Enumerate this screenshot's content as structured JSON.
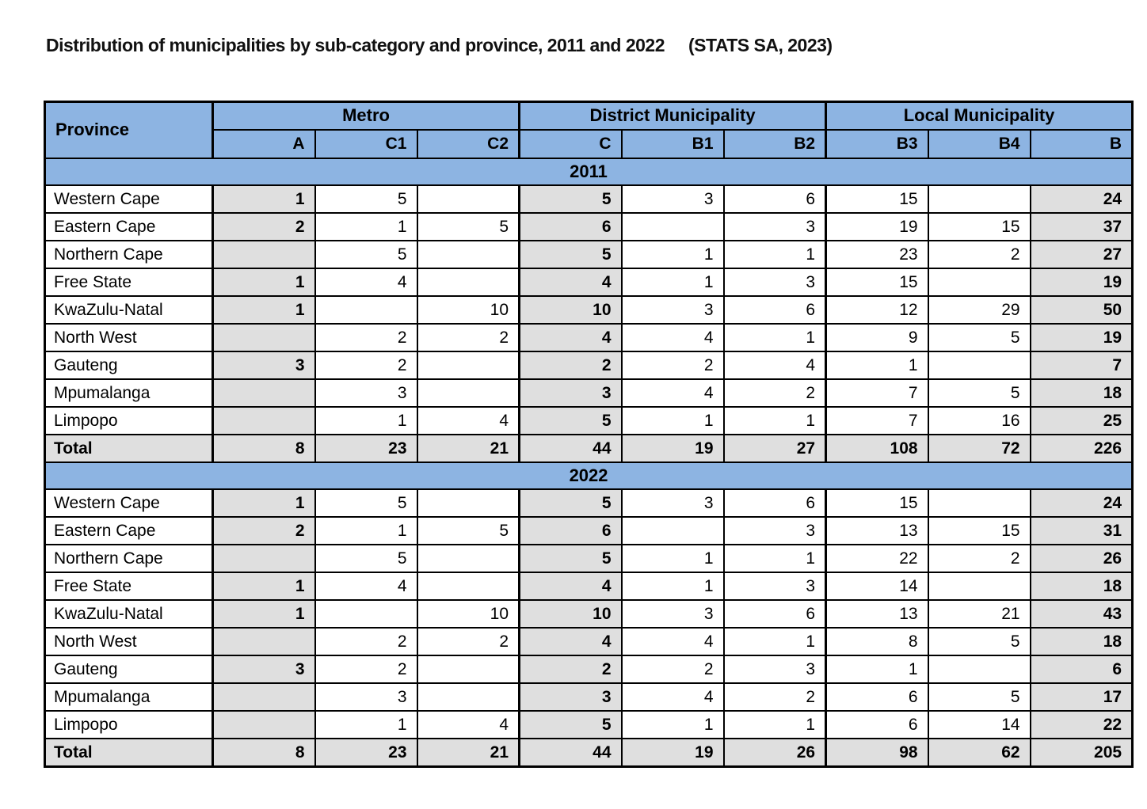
{
  "title": {
    "text": "Distribution of municipalities by sub-category and province, 2011 and 2022",
    "source": "(STATS SA, 2023)"
  },
  "colors": {
    "header_blue": "#8DB4E2",
    "shaded_gray": "#DFDFDF",
    "border_black": "#000000"
  },
  "table": {
    "corner_header": "Province",
    "groups": [
      {
        "label": "Metro",
        "columns": [
          "A",
          "C1",
          "C2"
        ]
      },
      {
        "label": "District Municipality",
        "columns": [
          "C",
          "B1",
          "B2"
        ]
      },
      {
        "label": "Local Municipality",
        "columns": [
          "B3",
          "B4",
          "B"
        ]
      }
    ],
    "shaded_column_indices": [
      0,
      3,
      8
    ],
    "sections": [
      {
        "year": "2011",
        "rows": [
          {
            "province": "Western Cape",
            "values": [
              "1",
              "5",
              "",
              "5",
              "3",
              "6",
              "15",
              "",
              "24"
            ]
          },
          {
            "province": "Eastern Cape",
            "values": [
              "2",
              "1",
              "5",
              "6",
              "",
              "3",
              "19",
              "15",
              "37"
            ]
          },
          {
            "province": "Northern Cape",
            "values": [
              "",
              "5",
              "",
              "5",
              "1",
              "1",
              "23",
              "2",
              "27"
            ]
          },
          {
            "province": "Free State",
            "values": [
              "1",
              "4",
              "",
              "4",
              "1",
              "3",
              "15",
              "",
              "19"
            ]
          },
          {
            "province": "KwaZulu-Natal",
            "values": [
              "1",
              "",
              "10",
              "10",
              "3",
              "6",
              "12",
              "29",
              "50"
            ]
          },
          {
            "province": "North West",
            "values": [
              "",
              "2",
              "2",
              "4",
              "4",
              "1",
              "9",
              "5",
              "19"
            ]
          },
          {
            "province": "Gauteng",
            "values": [
              "3",
              "2",
              "",
              "2",
              "2",
              "4",
              "1",
              "",
              "7"
            ]
          },
          {
            "province": "Mpumalanga",
            "values": [
              "",
              "3",
              "",
              "3",
              "4",
              "2",
              "7",
              "5",
              "18"
            ]
          },
          {
            "province": "Limpopo",
            "values": [
              "",
              "1",
              "4",
              "5",
              "1",
              "1",
              "7",
              "16",
              "25"
            ]
          },
          {
            "province": "Total",
            "values": [
              "8",
              "23",
              "21",
              "44",
              "19",
              "27",
              "108",
              "72",
              "226"
            ]
          }
        ]
      },
      {
        "year": "2022",
        "rows": [
          {
            "province": "Western Cape",
            "values": [
              "1",
              "5",
              "",
              "5",
              "3",
              "6",
              "15",
              "",
              "24"
            ]
          },
          {
            "province": "Eastern Cape",
            "values": [
              "2",
              "1",
              "5",
              "6",
              "",
              "3",
              "13",
              "15",
              "31"
            ]
          },
          {
            "province": "Northern Cape",
            "values": [
              "",
              "5",
              "",
              "5",
              "1",
              "1",
              "22",
              "2",
              "26"
            ]
          },
          {
            "province": "Free State",
            "values": [
              "1",
              "4",
              "",
              "4",
              "1",
              "3",
              "14",
              "",
              "18"
            ]
          },
          {
            "province": "KwaZulu-Natal",
            "values": [
              "1",
              "",
              "10",
              "10",
              "3",
              "6",
              "13",
              "21",
              "43"
            ]
          },
          {
            "province": "North West",
            "values": [
              "",
              "2",
              "2",
              "4",
              "4",
              "1",
              "8",
              "5",
              "18"
            ]
          },
          {
            "province": "Gauteng",
            "values": [
              "3",
              "2",
              "",
              "2",
              "2",
              "3",
              "1",
              "",
              "6"
            ]
          },
          {
            "province": "Mpumalanga",
            "values": [
              "",
              "3",
              "",
              "3",
              "4",
              "2",
              "6",
              "5",
              "17"
            ]
          },
          {
            "province": "Limpopo",
            "values": [
              "",
              "1",
              "4",
              "5",
              "1",
              "1",
              "6",
              "14",
              "22"
            ]
          },
          {
            "province": "Total",
            "values": [
              "8",
              "23",
              "21",
              "44",
              "19",
              "26",
              "98",
              "62",
              "205"
            ]
          }
        ]
      }
    ]
  }
}
